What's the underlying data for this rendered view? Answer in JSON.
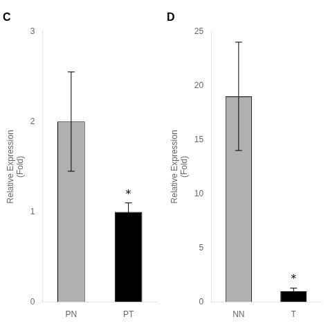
{
  "chart_data": [
    {
      "type": "bar",
      "title": "C",
      "categories": [
        "PN",
        "PT"
      ],
      "values": [
        2.0,
        1.0
      ],
      "errors": [
        0.55,
        0.1
      ],
      "colors": [
        "#b0b0b0",
        "#000000"
      ],
      "ylabel": "Relative Expression\n(Fold)",
      "ylim": [
        0,
        3
      ],
      "yticks": [
        0,
        1,
        2,
        3
      ],
      "grid": false,
      "annotations": [
        {
          "text": "*",
          "category": "PT"
        }
      ]
    },
    {
      "type": "bar",
      "title": "D",
      "categories": [
        "NN",
        "T"
      ],
      "values": [
        19.0,
        1.0
      ],
      "errors": [
        5.0,
        0.3
      ],
      "colors": [
        "#b0b0b0",
        "#000000"
      ],
      "ylabel": "Relative Expression\n(Fold)",
      "ylim": [
        0,
        25
      ],
      "yticks": [
        0,
        5,
        10,
        15,
        20,
        25
      ],
      "grid": false,
      "annotations": [
        {
          "text": "*",
          "category": "T"
        }
      ]
    }
  ]
}
